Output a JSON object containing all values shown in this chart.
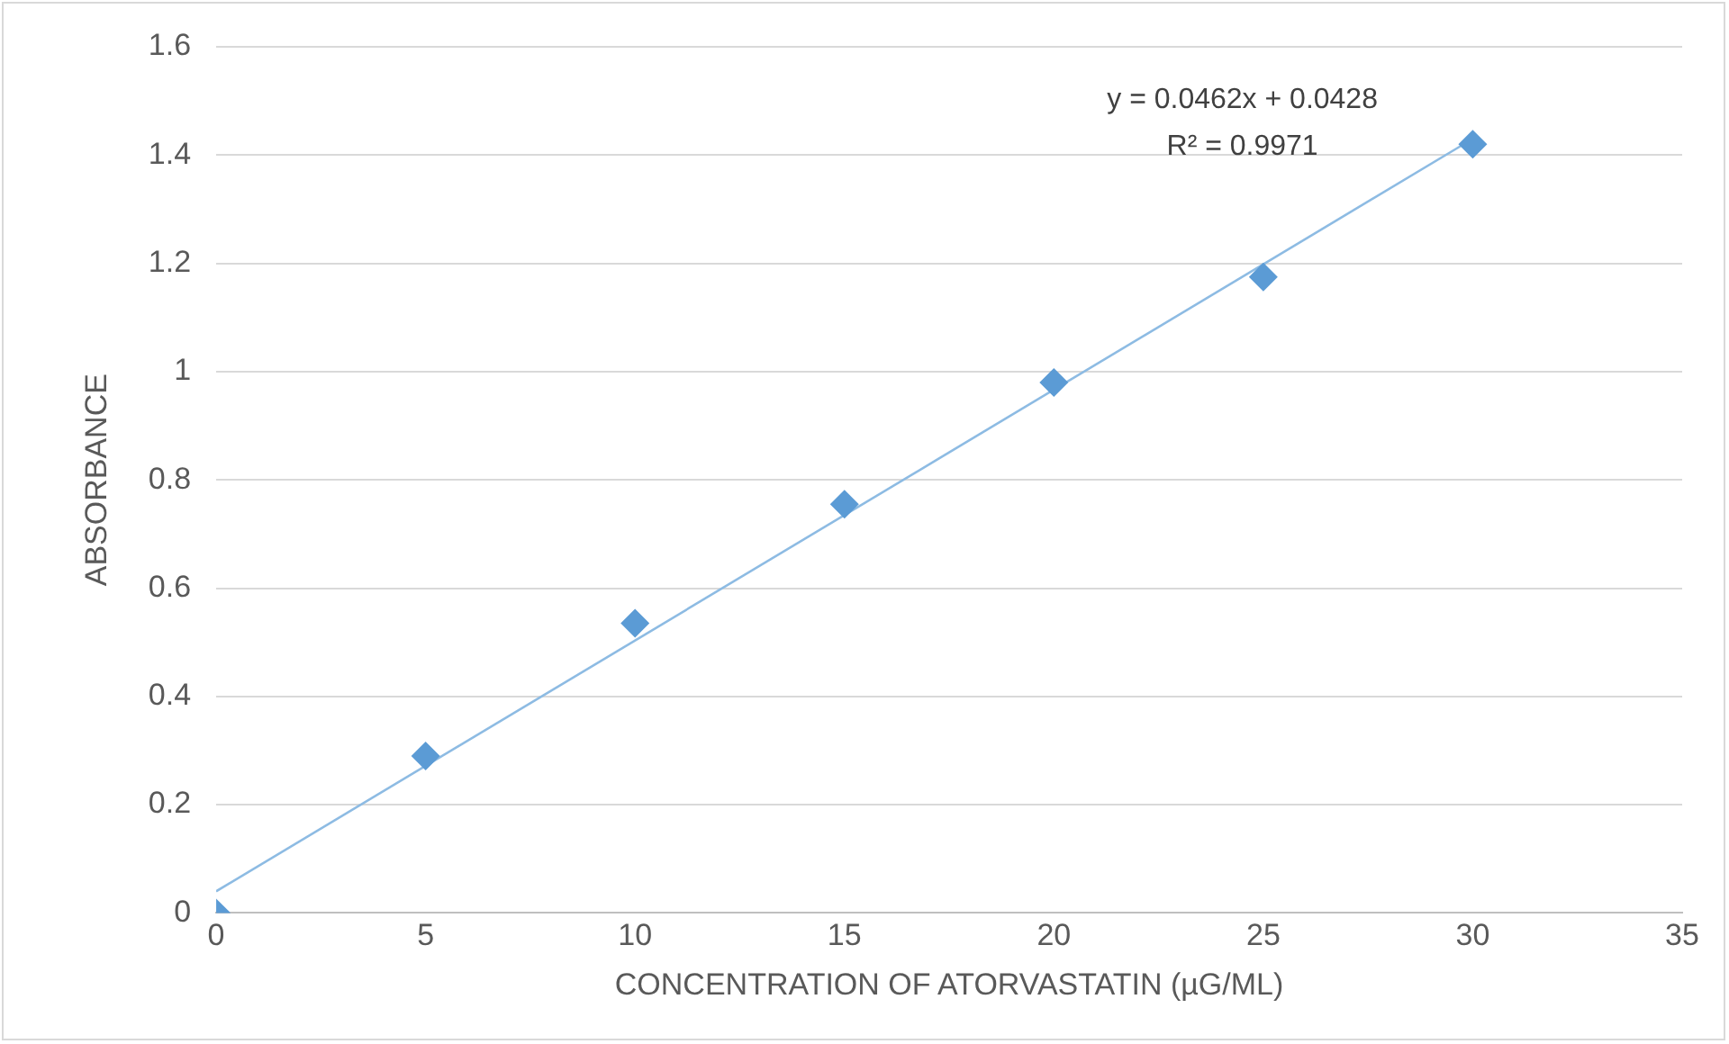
{
  "chart_data": {
    "type": "scatter",
    "xlabel": "CONCENTRATION OF ATORVASTATIN (µG/ML)",
    "ylabel": "ABSORBANCE",
    "annotations": [
      "y = 0.0462x + 0.0428",
      "R² = 0.9971"
    ],
    "series": [
      {
        "color": "#5b9bd5",
        "marker": "diamond",
        "x": [
          0,
          5,
          10,
          15,
          20,
          25,
          30
        ],
        "values": [
          0,
          0.29,
          0.535,
          0.755,
          0.98,
          1.175,
          1.42
        ]
      },
      {
        "type": "line",
        "color": "#8dbbe3",
        "marker": "none",
        "line_style": "solid",
        "x": [
          0,
          30
        ],
        "values": [
          0.04,
          1.43
        ]
      }
    ],
    "xlim": [
      0,
      35
    ],
    "xticks": [
      0,
      5,
      10,
      15,
      20,
      25,
      30,
      35
    ],
    "ylim": [
      0,
      1.6
    ],
    "yticks": [
      0,
      0.2,
      0.4,
      0.6,
      0.8,
      1,
      1.2,
      1.4,
      1.6
    ],
    "grid": "y",
    "legend": false
  }
}
